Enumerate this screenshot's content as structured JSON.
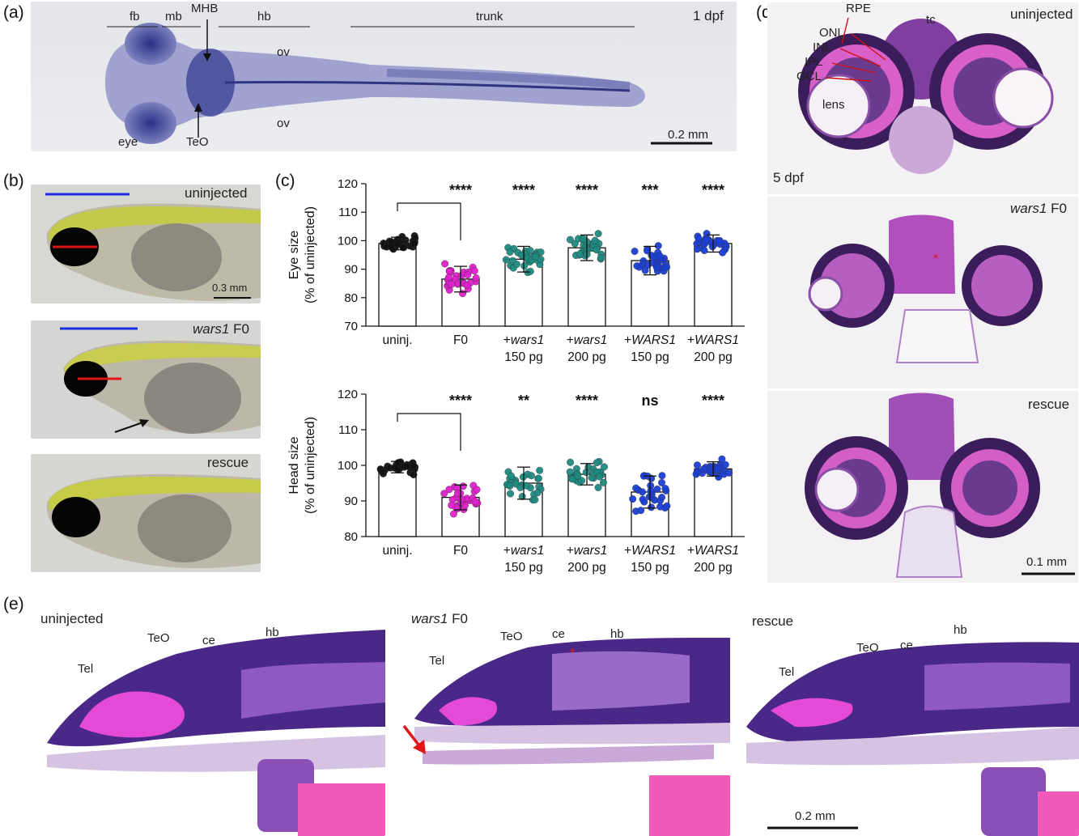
{
  "panel_labels": {
    "a": "(a)",
    "b": "(b)",
    "c": "(c)",
    "d": "(d)",
    "e": "(e)"
  },
  "panel_a": {
    "stage": "1 dpf",
    "regions": {
      "fb": "fb",
      "mb": "mb",
      "mhb": "MHB",
      "hb": "hb",
      "trunk": "trunk"
    },
    "labels": {
      "ov_top": "ov",
      "ov_bottom": "ov",
      "eye": "eye",
      "teo": "TeO"
    },
    "scale": "0.2 mm"
  },
  "panel_b": {
    "conditions": {
      "uninjected": "uninjected",
      "f0_gene": "wars1",
      "f0_suffix": " F0",
      "rescue": "rescue"
    },
    "scale": "0.3 mm"
  },
  "panel_d": {
    "labels": {
      "rpe": "RPE",
      "tc": "tc",
      "onl": "ONL",
      "inl": "INL",
      "ipl": "IPL",
      "gcl": "GCL",
      "lens": "lens",
      "stage": "5 dpf",
      "uninjected": "uninjected",
      "f0_gene": "wars1",
      "f0_suffix": " F0",
      "rescue": "rescue"
    },
    "scale": "0.1 mm"
  },
  "panel_e": {
    "conditions": {
      "uninjected": "uninjected",
      "f0_gene": "wars1",
      "f0_suffix": " F0",
      "rescue": "rescue"
    },
    "labels": {
      "tel": "Tel",
      "teo": "TeO",
      "ce": "ce",
      "hb": "hb"
    },
    "scale": "0.2 mm"
  },
  "chart_data": [
    {
      "type": "bar",
      "ylabel": "Eye size",
      "ylabel2": "(% of uninjected)",
      "ylim": [
        70,
        120
      ],
      "yticks": [
        70,
        80,
        90,
        100,
        110,
        120
      ],
      "categories": [
        {
          "prefix": "",
          "gene": "uninj.",
          "italic": false,
          "dose": ""
        },
        {
          "prefix": "",
          "gene": "F0",
          "italic": false,
          "dose": ""
        },
        {
          "prefix": "+",
          "gene": "wars1",
          "italic": true,
          "dose": "150 pg"
        },
        {
          "prefix": "+",
          "gene": "wars1",
          "italic": true,
          "dose": "200 pg"
        },
        {
          "prefix": "+",
          "gene": "WARS1",
          "italic": true,
          "dose": "150 pg"
        },
        {
          "prefix": "+",
          "gene": "WARS1",
          "italic": true,
          "dose": "200 pg"
        }
      ],
      "values": [
        99,
        86.5,
        93.5,
        97.5,
        93,
        99
      ],
      "sd": [
        2.2,
        4.5,
        4.5,
        4.5,
        5,
        3
      ],
      "colors": [
        "#111111",
        "#e020cc",
        "#1f8a80",
        "#1f8a80",
        "#1c3fd4",
        "#1c3fd4"
      ],
      "significance": [
        "",
        "****",
        "****",
        "****",
        "***",
        "****"
      ],
      "bracket": [
        0,
        1
      ]
    },
    {
      "type": "bar",
      "ylabel": "Head size",
      "ylabel2": "(% of uninjected)",
      "ylim": [
        80,
        120
      ],
      "yticks": [
        80,
        90,
        100,
        110,
        120
      ],
      "categories": [
        {
          "prefix": "",
          "gene": "uninj.",
          "italic": false,
          "dose": ""
        },
        {
          "prefix": "",
          "gene": "F0",
          "italic": false,
          "dose": ""
        },
        {
          "prefix": "+",
          "gene": "wars1",
          "italic": true,
          "dose": "150 pg"
        },
        {
          "prefix": "+",
          "gene": "wars1",
          "italic": true,
          "dose": "200 pg"
        },
        {
          "prefix": "+",
          "gene": "WARS1",
          "italic": true,
          "dose": "150 pg"
        },
        {
          "prefix": "+",
          "gene": "WARS1",
          "italic": true,
          "dose": "200 pg"
        }
      ],
      "values": [
        99.5,
        91,
        95,
        97.5,
        92.5,
        99
      ],
      "sd": [
        1.6,
        3.5,
        4.5,
        3,
        4.5,
        2
      ],
      "colors": [
        "#111111",
        "#e020cc",
        "#1f8a80",
        "#1f8a80",
        "#1c3fd4",
        "#1c3fd4"
      ],
      "significance": [
        "",
        "****",
        "**",
        "****",
        "ns",
        "****"
      ],
      "bracket": [
        0,
        1
      ]
    }
  ]
}
